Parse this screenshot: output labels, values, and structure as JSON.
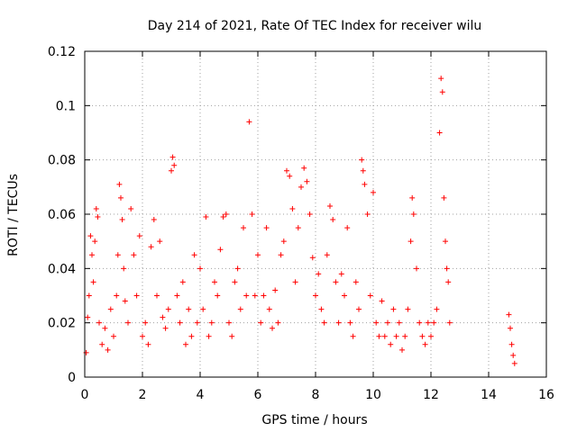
{
  "chart_data": {
    "type": "scatter",
    "title": "Day 214 of 2021, Rate Of TEC Index for receiver wilu",
    "xlabel": "GPS time / hours",
    "ylabel": "ROTI / TECUs",
    "xlim": [
      0,
      16
    ],
    "ylim": [
      0,
      0.12
    ],
    "x_ticks": [
      0,
      2,
      4,
      6,
      8,
      10,
      12,
      14,
      16
    ],
    "x_tick_labels": [
      "0",
      "2",
      "4",
      "6",
      "8",
      "10",
      "12",
      "14",
      "16"
    ],
    "y_ticks": [
      0,
      0.02,
      0.04,
      0.06,
      0.08,
      0.1,
      0.12
    ],
    "y_tick_labels": [
      "0",
      "0.02",
      "0.04",
      "0.06",
      "0.08",
      "0.1",
      "0.12"
    ],
    "grid": true,
    "marker": "+",
    "color": "#ff0000",
    "series": [
      {
        "name": "ROTI",
        "points": [
          [
            0.05,
            0.009
          ],
          [
            0.1,
            0.022
          ],
          [
            0.15,
            0.03
          ],
          [
            0.2,
            0.052
          ],
          [
            0.25,
            0.045
          ],
          [
            0.3,
            0.035
          ],
          [
            0.35,
            0.05
          ],
          [
            0.4,
            0.062
          ],
          [
            0.45,
            0.059
          ],
          [
            0.5,
            0.02
          ],
          [
            0.6,
            0.012
          ],
          [
            0.7,
            0.018
          ],
          [
            0.8,
            0.01
          ],
          [
            0.9,
            0.025
          ],
          [
            1.0,
            0.015
          ],
          [
            1.1,
            0.03
          ],
          [
            1.15,
            0.045
          ],
          [
            1.2,
            0.071
          ],
          [
            1.25,
            0.066
          ],
          [
            1.3,
            0.058
          ],
          [
            1.35,
            0.04
          ],
          [
            1.4,
            0.028
          ],
          [
            1.5,
            0.02
          ],
          [
            1.6,
            0.062
          ],
          [
            1.7,
            0.045
          ],
          [
            1.8,
            0.03
          ],
          [
            1.9,
            0.052
          ],
          [
            2.0,
            0.015
          ],
          [
            2.1,
            0.02
          ],
          [
            2.2,
            0.012
          ],
          [
            2.3,
            0.048
          ],
          [
            2.4,
            0.058
          ],
          [
            2.5,
            0.03
          ],
          [
            2.6,
            0.05
          ],
          [
            2.7,
            0.022
          ],
          [
            2.8,
            0.018
          ],
          [
            2.9,
            0.025
          ],
          [
            3.0,
            0.076
          ],
          [
            3.05,
            0.081
          ],
          [
            3.1,
            0.078
          ],
          [
            3.2,
            0.03
          ],
          [
            3.3,
            0.02
          ],
          [
            3.4,
            0.035
          ],
          [
            3.5,
            0.012
          ],
          [
            3.6,
            0.025
          ],
          [
            3.7,
            0.015
          ],
          [
            3.8,
            0.045
          ],
          [
            3.9,
            0.02
          ],
          [
            4.0,
            0.04
          ],
          [
            4.1,
            0.025
          ],
          [
            4.2,
            0.059
          ],
          [
            4.3,
            0.015
          ],
          [
            4.4,
            0.02
          ],
          [
            4.5,
            0.035
          ],
          [
            4.6,
            0.03
          ],
          [
            4.7,
            0.047
          ],
          [
            4.8,
            0.059
          ],
          [
            4.9,
            0.06
          ],
          [
            5.0,
            0.02
          ],
          [
            5.1,
            0.015
          ],
          [
            5.2,
            0.035
          ],
          [
            5.3,
            0.04
          ],
          [
            5.4,
            0.025
          ],
          [
            5.5,
            0.055
          ],
          [
            5.6,
            0.03
          ],
          [
            5.7,
            0.094
          ],
          [
            5.8,
            0.06
          ],
          [
            5.9,
            0.03
          ],
          [
            6.0,
            0.045
          ],
          [
            6.1,
            0.02
          ],
          [
            6.2,
            0.03
          ],
          [
            6.3,
            0.055
          ],
          [
            6.4,
            0.025
          ],
          [
            6.5,
            0.018
          ],
          [
            6.6,
            0.032
          ],
          [
            6.7,
            0.02
          ],
          [
            6.8,
            0.045
          ],
          [
            6.9,
            0.05
          ],
          [
            7.0,
            0.076
          ],
          [
            7.1,
            0.074
          ],
          [
            7.2,
            0.062
          ],
          [
            7.3,
            0.035
          ],
          [
            7.4,
            0.055
          ],
          [
            7.5,
            0.07
          ],
          [
            7.6,
            0.077
          ],
          [
            7.7,
            0.072
          ],
          [
            7.8,
            0.06
          ],
          [
            7.9,
            0.044
          ],
          [
            8.0,
            0.03
          ],
          [
            8.1,
            0.038
          ],
          [
            8.2,
            0.025
          ],
          [
            8.3,
            0.02
          ],
          [
            8.4,
            0.045
          ],
          [
            8.5,
            0.063
          ],
          [
            8.6,
            0.058
          ],
          [
            8.7,
            0.035
          ],
          [
            8.8,
            0.02
          ],
          [
            8.9,
            0.038
          ],
          [
            9.0,
            0.03
          ],
          [
            9.1,
            0.055
          ],
          [
            9.2,
            0.02
          ],
          [
            9.3,
            0.015
          ],
          [
            9.4,
            0.035
          ],
          [
            9.5,
            0.025
          ],
          [
            9.6,
            0.08
          ],
          [
            9.65,
            0.076
          ],
          [
            9.7,
            0.071
          ],
          [
            9.8,
            0.06
          ],
          [
            9.9,
            0.03
          ],
          [
            10.0,
            0.068
          ],
          [
            10.1,
            0.02
          ],
          [
            10.2,
            0.015
          ],
          [
            10.3,
            0.028
          ],
          [
            10.4,
            0.015
          ],
          [
            10.5,
            0.02
          ],
          [
            10.6,
            0.012
          ],
          [
            10.7,
            0.025
          ],
          [
            10.8,
            0.015
          ],
          [
            10.9,
            0.02
          ],
          [
            11.0,
            0.01
          ],
          [
            11.1,
            0.015
          ],
          [
            11.2,
            0.025
          ],
          [
            11.3,
            0.05
          ],
          [
            11.35,
            0.066
          ],
          [
            11.4,
            0.06
          ],
          [
            11.5,
            0.04
          ],
          [
            11.6,
            0.02
          ],
          [
            11.7,
            0.015
          ],
          [
            11.8,
            0.012
          ],
          [
            11.9,
            0.02
          ],
          [
            12.0,
            0.015
          ],
          [
            12.1,
            0.02
          ],
          [
            12.2,
            0.025
          ],
          [
            12.3,
            0.09
          ],
          [
            12.35,
            0.11
          ],
          [
            12.4,
            0.105
          ],
          [
            12.45,
            0.066
          ],
          [
            12.5,
            0.05
          ],
          [
            12.55,
            0.04
          ],
          [
            12.6,
            0.035
          ],
          [
            12.65,
            0.02
          ],
          [
            14.7,
            0.023
          ],
          [
            14.75,
            0.018
          ],
          [
            14.8,
            0.012
          ],
          [
            14.85,
            0.008
          ],
          [
            14.9,
            0.005
          ]
        ]
      }
    ]
  }
}
